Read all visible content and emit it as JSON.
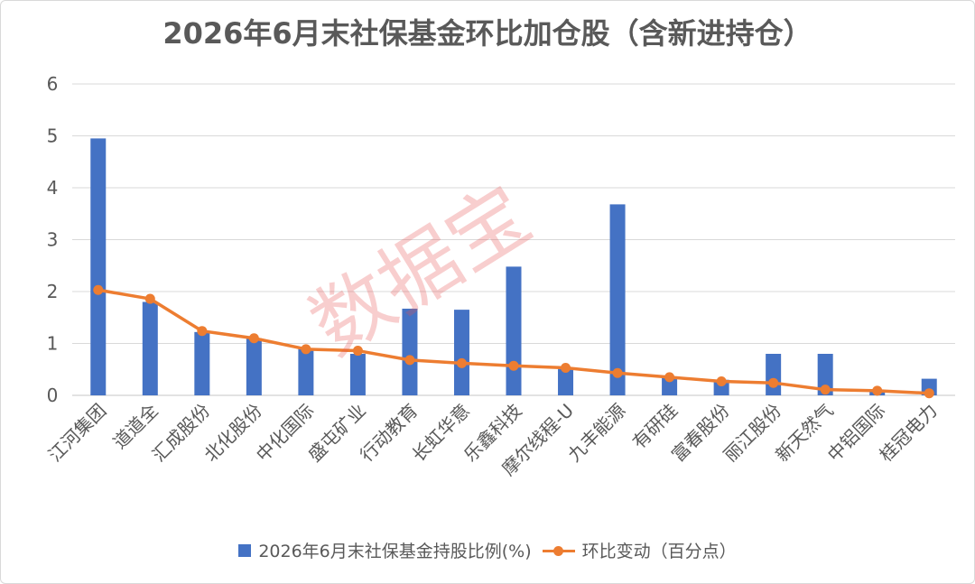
{
  "colors": {
    "bar": "#4472c4",
    "line": "#ed7d31",
    "grid": "#d9d9d9",
    "text": "#595959",
    "watermark": "#e65050"
  },
  "watermark": "数据宝",
  "chart_data": {
    "type": "bar",
    "title": "2026年6月末社保基金环比加仓股（含新进持仓）",
    "xlabel": "",
    "ylabel": "",
    "ylim": [
      0,
      6
    ],
    "yticks": [
      "0",
      "1",
      "2",
      "3",
      "4",
      "5",
      "6"
    ],
    "grid": true,
    "legend_position": "bottom",
    "categories": [
      "江河集团",
      "道道全",
      "汇成股份",
      "北化股份",
      "中化国际",
      "盛屯矿业",
      "行动教育",
      "长虹华意",
      "乐鑫科技",
      "摩尔线程-U",
      "九丰能源",
      "有研硅",
      "富春股份",
      "丽江股份",
      "新天然气",
      "中铝国际",
      "桂冠电力"
    ],
    "series": [
      {
        "name": "2026年6月末社保基金持股比例(%)",
        "type": "bar",
        "values": [
          4.95,
          1.8,
          1.22,
          1.1,
          0.9,
          0.8,
          1.67,
          1.65,
          2.48,
          0.53,
          3.68,
          0.35,
          0.3,
          0.8,
          0.8,
          0.1,
          0.32
        ]
      },
      {
        "name": "环比变动（百分点）",
        "type": "line",
        "values": [
          2.03,
          1.86,
          1.24,
          1.1,
          0.89,
          0.86,
          0.68,
          0.62,
          0.57,
          0.53,
          0.43,
          0.35,
          0.27,
          0.24,
          0.11,
          0.09,
          0.04
        ]
      }
    ]
  }
}
